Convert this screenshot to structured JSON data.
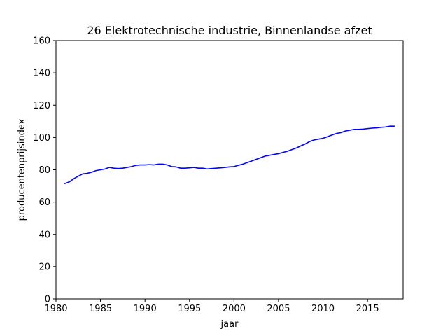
{
  "chart_data": {
    "type": "line",
    "title": "26 Elektrotechnische industrie, Binnenlandse afzet",
    "xlabel": "jaar",
    "ylabel": "producentenprijsindex",
    "xlim": [
      1980,
      2019
    ],
    "ylim": [
      0,
      160
    ],
    "xticks": [
      1980,
      1985,
      1990,
      1995,
      2000,
      2005,
      2010,
      2015
    ],
    "yticks": [
      0,
      20,
      40,
      60,
      80,
      100,
      120,
      140,
      160
    ],
    "grid": false,
    "legend": "none",
    "series": [
      {
        "color": "#0000ff",
        "x": [
          1981.0,
          1981.5,
          1982.0,
          1982.5,
          1983.0,
          1983.5,
          1984.0,
          1984.5,
          1985.0,
          1985.5,
          1986.0,
          1986.5,
          1987.0,
          1987.5,
          1988.0,
          1988.5,
          1989.0,
          1989.5,
          1990.0,
          1990.5,
          1991.0,
          1991.5,
          1992.0,
          1992.5,
          1993.0,
          1993.5,
          1994.0,
          1994.5,
          1995.0,
          1995.5,
          1996.0,
          1996.5,
          1997.0,
          1997.5,
          1998.0,
          1998.5,
          1999.0,
          1999.5,
          2000.0,
          2000.5,
          2001.0,
          2001.5,
          2002.0,
          2002.5,
          2003.0,
          2003.5,
          2004.0,
          2004.5,
          2005.0,
          2005.5,
          2006.0,
          2006.5,
          2007.0,
          2007.5,
          2008.0,
          2008.5,
          2009.0,
          2009.5,
          2010.0,
          2010.5,
          2011.0,
          2011.5,
          2012.0,
          2012.5,
          2013.0,
          2013.5,
          2014.0,
          2014.5,
          2015.0,
          2015.5,
          2016.0,
          2016.5,
          2017.0,
          2017.5,
          2018.0
        ],
        "y": [
          71.5,
          72.5,
          74.5,
          76.0,
          77.5,
          77.8,
          78.5,
          79.5,
          80.0,
          80.5,
          81.5,
          81.0,
          80.8,
          81.0,
          81.5,
          82.0,
          82.8,
          83.0,
          83.0,
          83.2,
          83.0,
          83.5,
          83.5,
          83.0,
          82.0,
          81.8,
          81.0,
          81.0,
          81.2,
          81.5,
          81.0,
          81.0,
          80.5,
          80.8,
          81.0,
          81.2,
          81.5,
          81.8,
          82.0,
          82.8,
          83.5,
          84.5,
          85.5,
          86.5,
          87.5,
          88.5,
          89.0,
          89.5,
          90.0,
          90.8,
          91.5,
          92.5,
          93.5,
          94.8,
          96.0,
          97.5,
          98.5,
          99.0,
          99.5,
          100.5,
          101.5,
          102.5,
          103.0,
          104.0,
          104.5,
          105.0,
          105.0,
          105.2,
          105.5,
          105.8,
          106.0,
          106.3,
          106.5,
          107.0,
          107.0
        ]
      }
    ]
  }
}
